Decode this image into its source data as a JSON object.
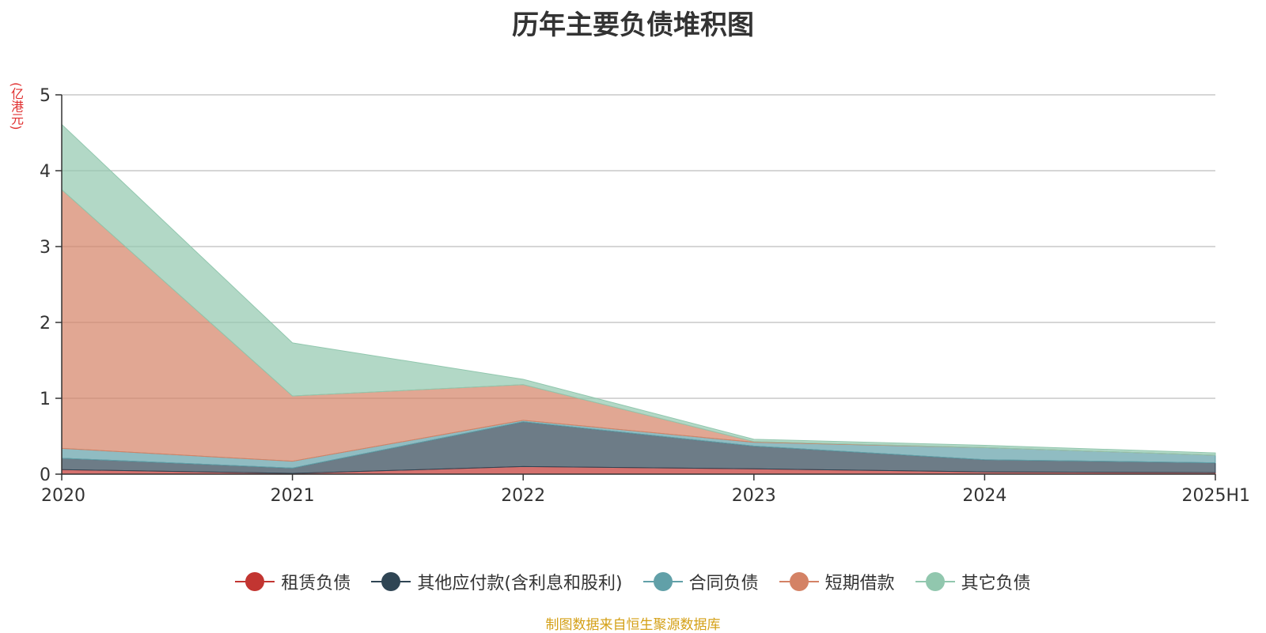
{
  "chart_data": {
    "type": "area",
    "stacked": true,
    "title": "历年主要负债堆积图",
    "unit_label": "(亿港元)",
    "categories": [
      "2020",
      "2021",
      "2022",
      "2023",
      "2024",
      "2025H1"
    ],
    "ylim": [
      0,
      5
    ],
    "yticks": [
      0,
      1,
      2,
      3,
      4,
      5
    ],
    "grid": true,
    "legend_position": "bottom",
    "series": [
      {
        "name": "租赁负债",
        "color": "#c23531",
        "values": [
          0.06,
          0.01,
          0.1,
          0.07,
          0.03,
          0.02
        ]
      },
      {
        "name": "其他应付款(含利息和股利)",
        "color": "#2f4554",
        "values": [
          0.15,
          0.07,
          0.59,
          0.3,
          0.16,
          0.13
        ]
      },
      {
        "name": "合同负债",
        "color": "#61a0a8",
        "values": [
          0.13,
          0.09,
          0.02,
          0.05,
          0.16,
          0.1
        ]
      },
      {
        "name": "短期借款",
        "color": "#d48265",
        "values": [
          3.41,
          0.86,
          0.47,
          0.01,
          0.0,
          0.0
        ]
      },
      {
        "name": "其它负债",
        "color": "#91c7ae",
        "values": [
          0.86,
          0.7,
          0.07,
          0.03,
          0.03,
          0.03
        ]
      }
    ]
  },
  "source_text": "制图数据来自恒生聚源数据库"
}
